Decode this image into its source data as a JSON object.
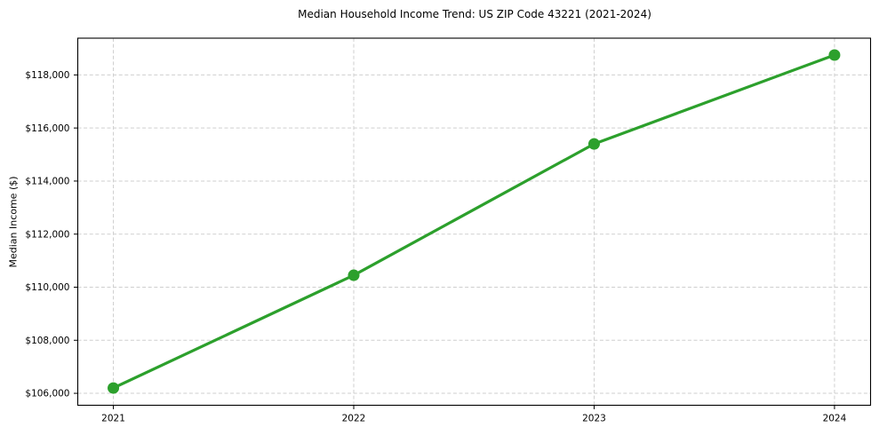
{
  "figure": {
    "title": "Median Household Income Trend: US ZIP Code 43221 (2021-2024)",
    "ylabel": "Median Income ($)"
  },
  "chart_data": {
    "type": "line",
    "title": "Median Household Income Trend: US ZIP Code 43221 (2021-2024)",
    "xlabel": "",
    "ylabel": "Median Income ($)",
    "x": [
      2021,
      2022,
      2023,
      2024
    ],
    "series": [
      {
        "name": "Median Household Income",
        "values": [
          106200,
          110450,
          115400,
          118750
        ],
        "color": "#2ca02c",
        "marker": "circle"
      }
    ],
    "xticks": {
      "values": [
        2021,
        2022,
        2023,
        2024
      ],
      "labels": [
        "2021",
        "2022",
        "2023",
        "2024"
      ]
    },
    "yticks": {
      "values": [
        106000,
        108000,
        110000,
        112000,
        114000,
        116000,
        118000
      ],
      "labels": [
        "$106,000",
        "$108,000",
        "$110,000",
        "$112,000",
        "$114,000",
        "$116,000",
        "$118,000"
      ]
    },
    "xlim": [
      2020.852,
      2024.15
    ],
    "ylim": [
      105550,
      119385
    ],
    "grid": true,
    "legend_position": "none",
    "colors": {
      "line": "#2ca02c",
      "grid": "#cfcfcf",
      "axis": "#000000",
      "background": "#ffffff",
      "text": "#000000"
    }
  }
}
